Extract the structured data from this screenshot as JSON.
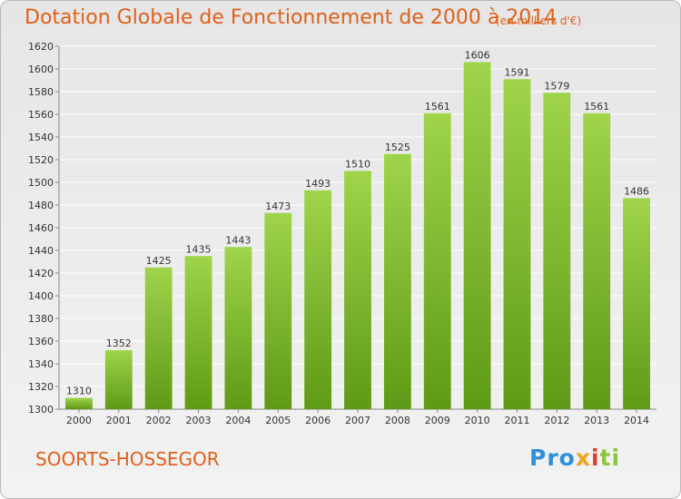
{
  "header": {
    "title": "Dotation Globale de Fonctionnement de 2000 à 2014",
    "subtitle": "(en milliers d'€)"
  },
  "footer": {
    "commune": "SOORTS-HOSSEGOR",
    "logo_parts": [
      "Pro",
      "x",
      "i",
      "ti"
    ]
  },
  "colors": {
    "title": "#e0601a",
    "bar_top": "#9fd44b",
    "bar_bottom": "#5f9a16",
    "grid": "#ffffff",
    "logo": [
      "#2f8fd8",
      "#f0a21c",
      "#e23c2b",
      "#8cc63f"
    ]
  },
  "chart_data": {
    "type": "bar",
    "title": "Dotation Globale de Fonctionnement de 2000 à 2014",
    "subtitle": "(en milliers d'€)",
    "xlabel": "",
    "ylabel": "",
    "categories": [
      "2000",
      "2001",
      "2002",
      "2003",
      "2004",
      "2005",
      "2006",
      "2007",
      "2008",
      "2009",
      "2010",
      "2011",
      "2012",
      "2013",
      "2014"
    ],
    "values": [
      1310,
      1352,
      1425,
      1435,
      1443,
      1473,
      1493,
      1510,
      1525,
      1561,
      1606,
      1591,
      1579,
      1561,
      1486
    ],
    "ylim": [
      1300,
      1620
    ],
    "yticks": [
      1300,
      1320,
      1340,
      1360,
      1380,
      1400,
      1420,
      1440,
      1460,
      1480,
      1500,
      1520,
      1540,
      1560,
      1580,
      1600,
      1620
    ],
    "grid": true,
    "legend": "none",
    "data_labels": true
  }
}
